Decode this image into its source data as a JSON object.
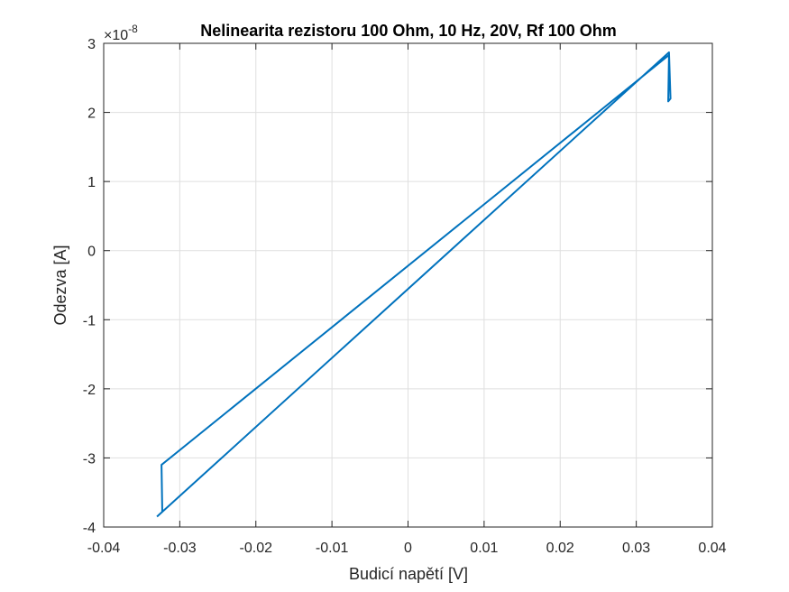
{
  "chart_data": {
    "type": "line",
    "title": "Nelinearita rezistoru 100 Ohm, 10 Hz, 20V, Rf 100 Ohm",
    "xlabel": "Budicí napětí [V]",
    "ylabel": "Odezva [A]",
    "xlim": [
      -0.04,
      0.04
    ],
    "ylim": [
      -4,
      3
    ],
    "x_ticks": [
      -0.04,
      -0.03,
      -0.02,
      -0.01,
      0,
      0.01,
      0.02,
      0.03,
      0.04
    ],
    "x_tick_labels": [
      "-0.04",
      "-0.03",
      "-0.02",
      "-0.01",
      "0",
      "0.01",
      "0.02",
      "0.03",
      "0.04"
    ],
    "y_ticks": [
      -4,
      -3,
      -2,
      -1,
      0,
      1,
      2,
      3
    ],
    "y_tick_labels": [
      "-4",
      "-3",
      "-2",
      "-1",
      "0",
      "1",
      "2",
      "3"
    ],
    "y_exponent_base": "×10",
    "y_exponent_power": "-8",
    "grid": true,
    "line_color": "#0072BD",
    "series": [
      {
        "x": [
          -0.033,
          -0.0323,
          -0.0324,
          0.0343,
          0.0342,
          0.0345,
          0.0343,
          -0.033
        ],
        "y": [
          -3.85,
          -3.78,
          -3.1,
          2.83,
          2.16,
          2.2,
          2.87,
          -3.85
        ]
      }
    ]
  }
}
